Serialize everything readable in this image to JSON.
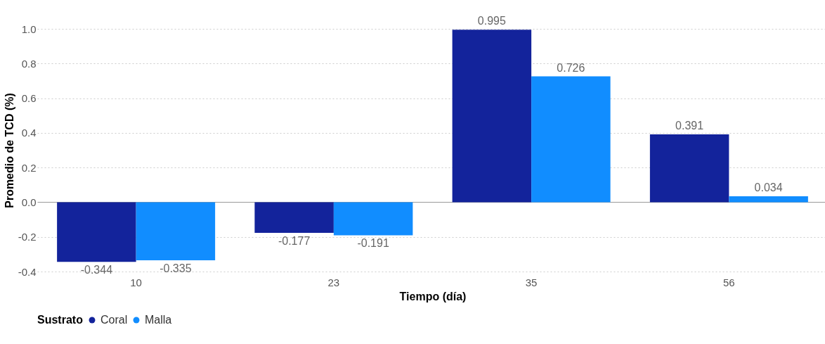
{
  "chart_data": {
    "type": "bar",
    "xlabel": "Tiempo (día)",
    "ylabel": "Promedio de TCD (%)",
    "legend_title": "Sustrato",
    "categories": [
      "10",
      "23",
      "35",
      "56"
    ],
    "series": [
      {
        "name": "Coral",
        "color": "#13239b",
        "values": [
          -0.344,
          -0.177,
          0.995,
          0.391
        ]
      },
      {
        "name": "Malla",
        "color": "#118dff",
        "values": [
          -0.335,
          -0.191,
          0.726,
          0.034
        ]
      }
    ],
    "ylim": [
      -0.4,
      1.0
    ],
    "yticks": [
      {
        "value": -0.4,
        "label": "-0.4"
      },
      {
        "value": -0.2,
        "label": "-0.2"
      },
      {
        "value": 0,
        "label": "0.0"
      },
      {
        "value": 0.2,
        "label": "0.2"
      },
      {
        "value": 0.4,
        "label": "0.4"
      },
      {
        "value": 0.6,
        "label": "0.6"
      },
      {
        "value": 0.8,
        "label": "0.8"
      },
      {
        "value": 1,
        "label": "1.0"
      }
    ],
    "grid": "y",
    "legend": "bottom",
    "data_labels": true
  }
}
